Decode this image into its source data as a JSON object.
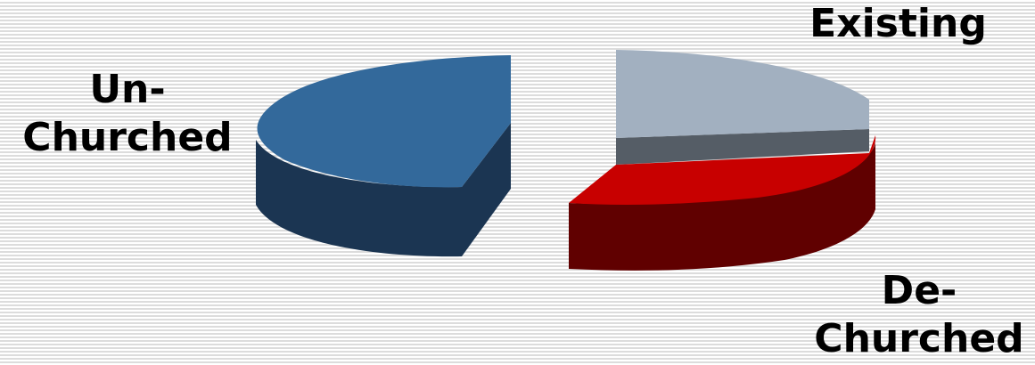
{
  "chart_data": {
    "type": "pie",
    "style": "3d-exploded",
    "slices": [
      {
        "label_line1": "Un-",
        "label_line2": "Churched",
        "value": 50,
        "color": "#33699b",
        "side_color": "#1b3552"
      },
      {
        "label_line1": "Existing",
        "label_line2": "",
        "value": 22,
        "color": "#a2b0c0",
        "side_color": "#555d66"
      },
      {
        "label_line1": "De-",
        "label_line2": "Churched",
        "value": 28,
        "color": "#c80000",
        "side_color": "#600000"
      }
    ],
    "legend": "none",
    "grid": false
  }
}
